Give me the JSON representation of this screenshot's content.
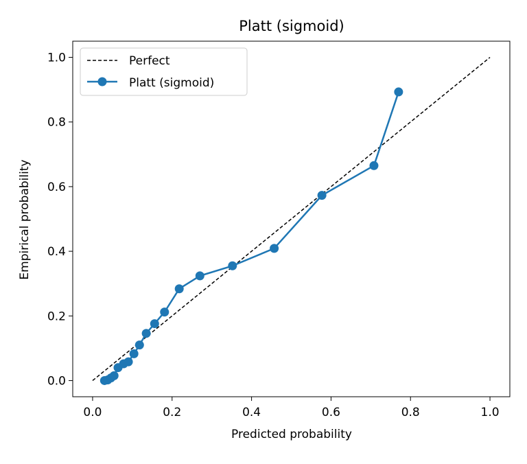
{
  "chart_data": {
    "type": "line",
    "title": "Platt (sigmoid)",
    "xlabel": "Predicted probability",
    "ylabel": "Empirical probability",
    "xlim": [
      -0.05,
      1.05
    ],
    "ylim": [
      -0.05,
      1.05
    ],
    "x_ticks": [
      0.0,
      0.2,
      0.4,
      0.6,
      0.8,
      1.0
    ],
    "y_ticks": [
      0.0,
      0.2,
      0.4,
      0.6,
      0.8,
      1.0
    ],
    "x_tick_labels": [
      "0.0",
      "0.2",
      "0.4",
      "0.6",
      "0.8",
      "1.0"
    ],
    "y_tick_labels": [
      "0.0",
      "0.2",
      "0.4",
      "0.6",
      "0.8",
      "1.0"
    ],
    "grid": false,
    "legend_position": "top-left",
    "series": [
      {
        "name": "Perfect",
        "style": "dashed",
        "color": "#000000",
        "marker": "none",
        "x": [
          0.0,
          1.0
        ],
        "y": [
          0.0,
          1.0
        ]
      },
      {
        "name": "Platt (sigmoid)",
        "style": "solid",
        "color": "#1f77b4",
        "marker": "circle",
        "x": [
          0.03,
          0.038,
          0.046,
          0.054,
          0.064,
          0.078,
          0.09,
          0.104,
          0.118,
          0.135,
          0.156,
          0.181,
          0.218,
          0.27,
          0.352,
          0.457,
          0.577,
          0.708,
          0.77
        ],
        "y": [
          0.0,
          0.002,
          0.008,
          0.015,
          0.04,
          0.052,
          0.058,
          0.083,
          0.11,
          0.146,
          0.176,
          0.212,
          0.284,
          0.324,
          0.355,
          0.409,
          0.573,
          0.665,
          0.893
        ]
      }
    ]
  }
}
